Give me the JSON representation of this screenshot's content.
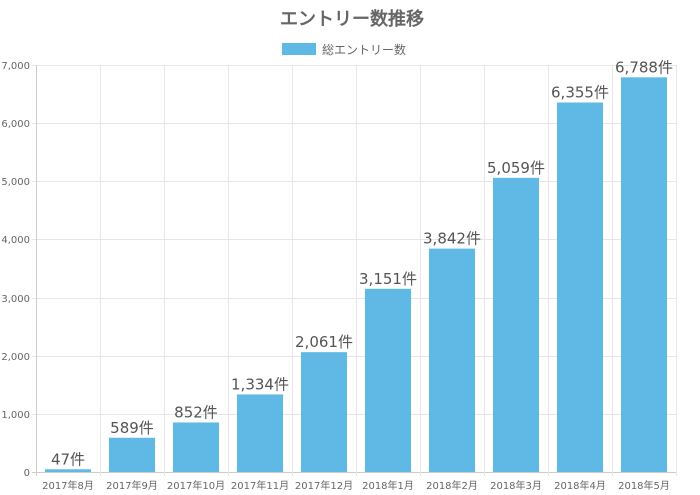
{
  "chart_data": {
    "type": "bar",
    "title": "エントリー数推移",
    "categories": [
      "2017年8月",
      "2017年9月",
      "2017年10月",
      "2017年11月",
      "2017年12月",
      "2018年1月",
      "2018年2月",
      "2018年3月",
      "2018年4月",
      "2018年5月"
    ],
    "series": [
      {
        "name": "総エントリー数",
        "values": [
          47,
          589,
          852,
          1334,
          2061,
          3151,
          3842,
          5059,
          6355,
          6788
        ],
        "data_labels": [
          "47件",
          "589件",
          "852件",
          "1,334件",
          "2,061件",
          "3,151件",
          "3,842件",
          "5,059件",
          "6,355件",
          "6,788件"
        ],
        "color": "#5fb9e4"
      }
    ],
    "y_ticks": [
      "0",
      "1,000",
      "2,000",
      "3,000",
      "4,000",
      "5,000",
      "6,000",
      "7,000"
    ],
    "xlabel": "",
    "ylabel": "",
    "ylim": [
      0,
      7000
    ],
    "grid": true,
    "legend_position": "top-center"
  }
}
